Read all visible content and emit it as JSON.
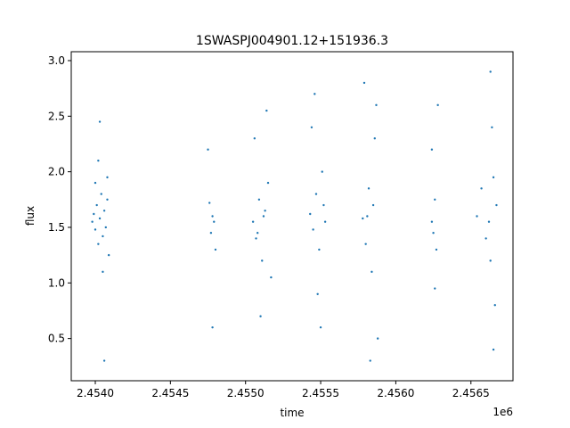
{
  "chart_data": {
    "type": "scatter",
    "title": "1SWASPJ004901.12+151936.3",
    "xlabel": "time",
    "ylabel": "flux",
    "x_offset_label": "1e6",
    "xlim": [
      2.45384,
      2.45678
    ],
    "ylim": [
      0.12,
      3.08
    ],
    "x_ticks": [
      2.454,
      2.4545,
      2.455,
      2.4555,
      2.456,
      2.4565
    ],
    "x_tick_labels": [
      "2.4540",
      "2.4545",
      "2.4550",
      "2.4555",
      "2.4560",
      "2.4565"
    ],
    "y_ticks": [
      0.5,
      1.0,
      1.5,
      2.0,
      2.5,
      3.0
    ],
    "y_tick_labels": [
      "0.5",
      "1.0",
      "1.5",
      "2.0",
      "2.5",
      "3.0"
    ],
    "grid": false,
    "marker_color": "#1f77b4",
    "series": [
      {
        "x": [
          2.45398,
          2.45399,
          2.454,
          2.45401,
          2.45402,
          2.45403,
          2.45404,
          2.45405,
          2.45406,
          2.45407,
          2.45408,
          2.45409,
          2.45402,
          2.45405,
          2.45408,
          2.454,
          2.45403,
          2.45406,
          2.45478,
          2.45479,
          2.45476,
          2.45477,
          2.4548,
          2.45475,
          2.45478,
          2.45505,
          2.45507,
          2.45509,
          2.45511,
          2.45513,
          2.45515,
          2.45517,
          2.45506,
          2.4551,
          2.45514,
          2.45512,
          2.45508,
          2.45543,
          2.45545,
          2.45547,
          2.45549,
          2.45551,
          2.45553,
          2.45544,
          2.45548,
          2.45552,
          2.45546,
          2.4555,
          2.45578,
          2.4558,
          2.45582,
          2.45584,
          2.45586,
          2.45588,
          2.45579,
          2.45583,
          2.45587,
          2.45581,
          2.45585,
          2.45624,
          2.45625,
          2.45626,
          2.45627,
          2.45624,
          2.45626,
          2.45628,
          2.45654,
          2.45657,
          2.4566,
          2.45663,
          2.45665,
          2.45667,
          2.45662,
          2.45664,
          2.45666,
          2.45663,
          2.45665
        ],
        "y": [
          1.55,
          1.62,
          1.48,
          1.7,
          1.35,
          1.58,
          1.8,
          1.42,
          1.65,
          1.5,
          1.95,
          1.25,
          2.1,
          1.1,
          1.75,
          1.9,
          2.45,
          0.3,
          1.6,
          1.55,
          1.72,
          1.45,
          1.3,
          2.2,
          0.6,
          1.55,
          1.4,
          1.75,
          1.2,
          1.65,
          1.9,
          1.05,
          2.3,
          0.7,
          2.55,
          1.6,
          1.45,
          1.62,
          1.48,
          1.8,
          1.3,
          2.0,
          1.55,
          2.4,
          0.9,
          1.7,
          2.7,
          0.6,
          1.58,
          1.35,
          1.85,
          1.1,
          2.3,
          0.5,
          2.8,
          0.3,
          2.6,
          1.6,
          1.7,
          1.55,
          1.45,
          1.75,
          1.3,
          2.2,
          0.95,
          2.6,
          1.6,
          1.85,
          1.4,
          2.9,
          0.4,
          1.7,
          1.55,
          2.4,
          0.8,
          1.2,
          1.95
        ]
      }
    ]
  }
}
